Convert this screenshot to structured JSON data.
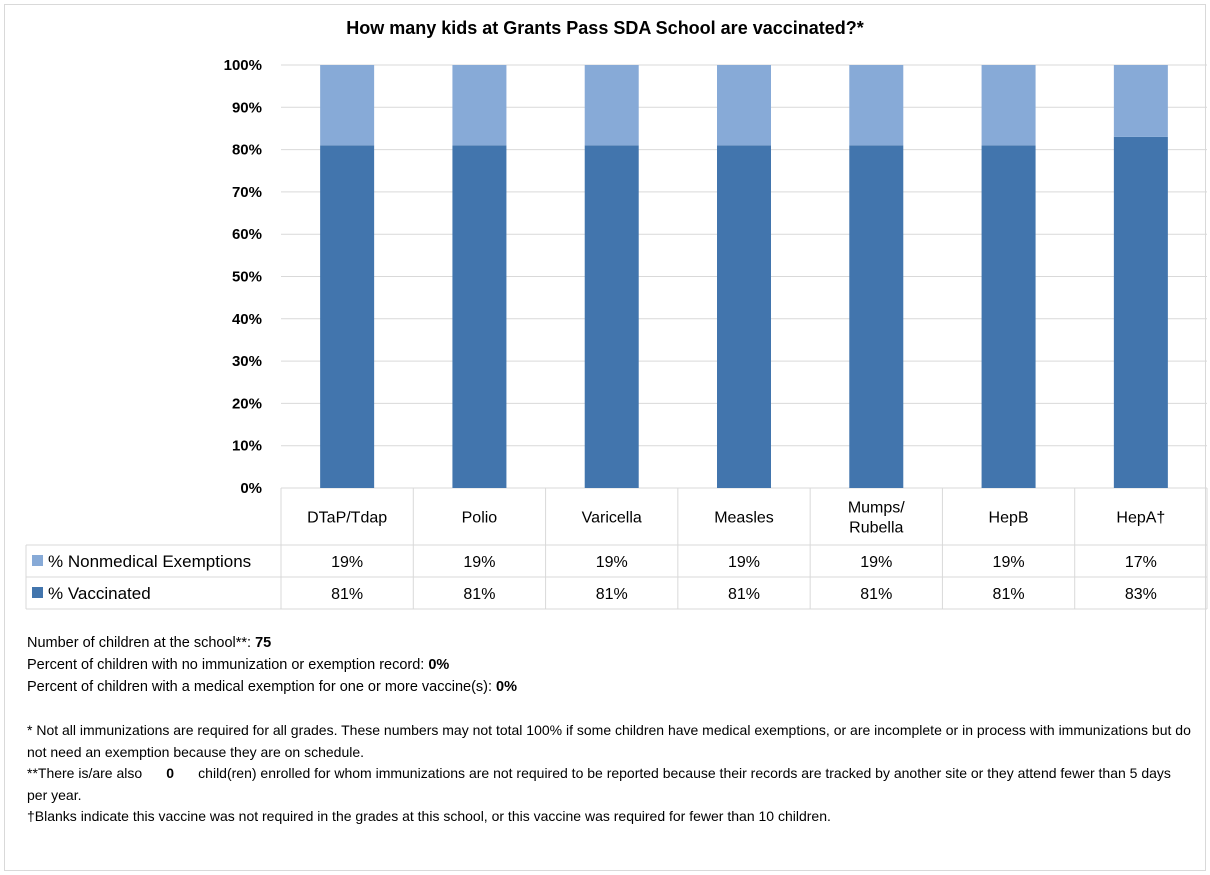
{
  "chart_data": {
    "type": "bar",
    "stacked": true,
    "title": "How many kids at Grants Pass SDA School are vaccinated?*",
    "categories": [
      "DTaP/Tdap",
      "Polio",
      "Varicella",
      "Measles",
      "Mumps/ Rubella",
      "HepB",
      "HepA†"
    ],
    "category_lines": [
      [
        "DTaP/Tdap"
      ],
      [
        "Polio"
      ],
      [
        "Varicella"
      ],
      [
        "Measles"
      ],
      [
        "Mumps/",
        "Rubella"
      ],
      [
        "HepB"
      ],
      [
        "HepA†"
      ]
    ],
    "series": [
      {
        "name": "% Vaccinated",
        "color": "#4275ad",
        "values": [
          81,
          81,
          81,
          81,
          81,
          81,
          83
        ],
        "labels": [
          "81%",
          "81%",
          "81%",
          "81%",
          "81%",
          "81%",
          "83%"
        ]
      },
      {
        "name": "% Nonmedical Exemptions",
        "color": "#87aad7",
        "values": [
          19,
          19,
          19,
          19,
          19,
          19,
          17
        ],
        "labels": [
          "19%",
          "19%",
          "19%",
          "19%",
          "19%",
          "19%",
          "17%"
        ]
      }
    ],
    "ylim": [
      0,
      100
    ],
    "yticks": [
      0,
      10,
      20,
      30,
      40,
      50,
      60,
      70,
      80,
      90,
      100
    ],
    "ytick_labels": [
      "0%",
      "10%",
      "20%",
      "30%",
      "40%",
      "50%",
      "60%",
      "70%",
      "80%",
      "90%",
      "100%"
    ],
    "grid": true,
    "legend": "data-table"
  },
  "info": {
    "children_label": "Number of children at the school**:",
    "children_value": "75",
    "no_record_label": "Percent of children with no immunization or exemption record:",
    "no_record_value": "0%",
    "medical_label": "Percent of children with a medical exemption for one or more vaccine(s):",
    "medical_value": "0%"
  },
  "notes": {
    "note1": "* Not all immunizations are required for all grades. These numbers may not total 100% if some children have medical exemptions, or are incomplete or in process with immunizations but do not need an exemption because they are on schedule.",
    "note2_before": "**There is/are also",
    "note2_value": "0",
    "note2_after": "child(ren) enrolled for whom immunizations are not required to be reported because their records are tracked by another site or they attend fewer than 5 days per year.",
    "note3": "†Blanks indicate this vaccine was not required in the grades at this school, or this vaccine was required for fewer than 10 children."
  }
}
